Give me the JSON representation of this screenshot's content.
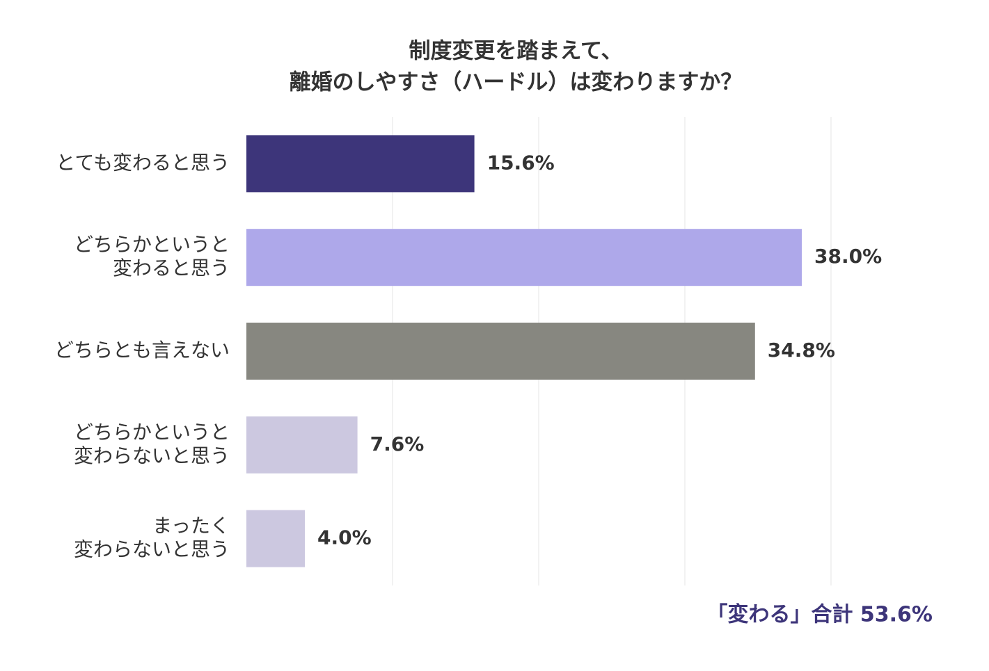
{
  "chart_data": {
    "type": "hbar",
    "title": [
      "制度変更を踏まえて、",
      "離婚のしやすさ（ハードル）は変わりますか？"
    ],
    "categories": [
      [
        "とても変わると思う"
      ],
      [
        "どちらかというと",
        "変わると思う"
      ],
      [
        "どちらとも言えない"
      ],
      [
        "どちらかというと",
        "変わらないと思う"
      ],
      [
        "まったく",
        "変わらないと思う"
      ]
    ],
    "values": [
      15.6,
      38.0,
      34.8,
      7.6,
      4.0
    ],
    "value_labels": [
      "15.6%",
      "38.0%",
      "34.8%",
      "7.6%",
      "4.0%"
    ],
    "colors": [
      "#3d357a",
      "#aea8ea",
      "#878780",
      "#ccc8e0",
      "#ccc8e0"
    ],
    "xlim": [
      0,
      40
    ],
    "xticks": [
      10,
      20,
      30,
      40
    ],
    "grid": true,
    "annotation": "「変わる」合計 53.6%",
    "annotation_color": "#3d357a"
  }
}
